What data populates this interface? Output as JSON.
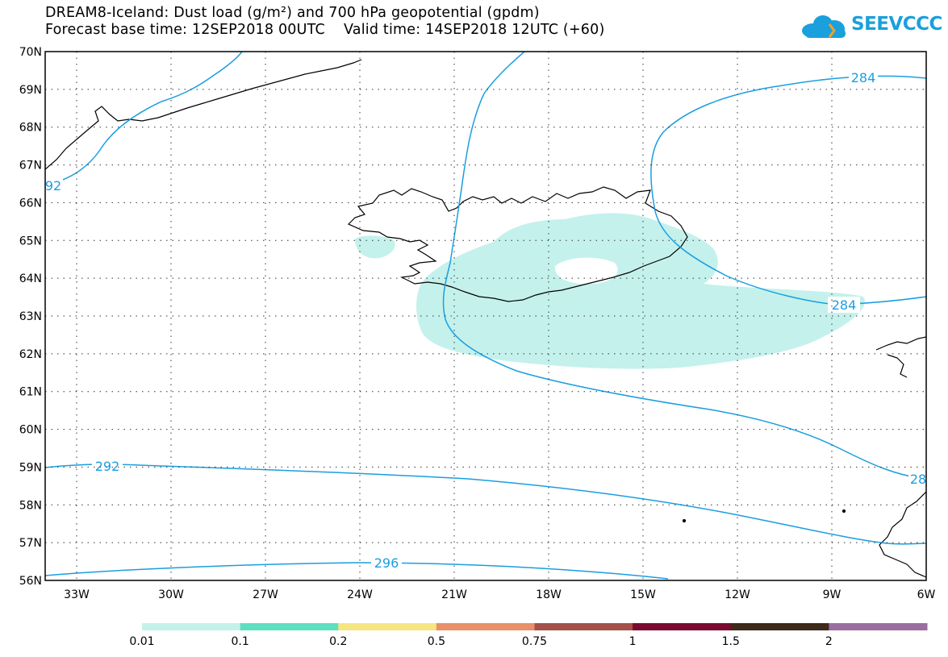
{
  "header": {
    "title_line1": "DREAM8-Iceland: Dust load (g/m²) and 700 hPa geopotential (gpdm)",
    "title_line2": "Forecast base time: 12SEP2018 00UTC    Valid time: 14SEP2018 12UTC (+60)",
    "logo_text": "SEEVCCC"
  },
  "map": {
    "lat_range": [
      56,
      70
    ],
    "lon_range": [
      -34,
      -6
    ],
    "lat_labels": [
      "56N",
      "57N",
      "58N",
      "59N",
      "60N",
      "61N",
      "62N",
      "63N",
      "64N",
      "65N",
      "66N",
      "67N",
      "68N",
      "69N",
      "70N"
    ],
    "lon_labels": [
      "33W",
      "30W",
      "27W",
      "24W",
      "21W",
      "18W",
      "15W",
      "12W",
      "9W",
      "6W"
    ],
    "contour_labels": [
      {
        "text": "284",
        "lon": -14.4,
        "lat": 69.3
      },
      {
        "text": "284",
        "lon": -9.3,
        "lat": 63.3
      },
      {
        "text": "92",
        "lon": -33.8,
        "lat": 66.5
      },
      {
        "text": "28",
        "lon": -6.2,
        "lat": 58.8
      },
      {
        "text": "292",
        "lon": -32.0,
        "lat": 59.1
      },
      {
        "text": "296",
        "lon": -24.7,
        "lat": 56.5
      }
    ],
    "contour_color": "#1a9ee0",
    "dust_color": "#c4f1ec"
  },
  "legend": {
    "bins": [
      {
        "color": "#c4f1ec",
        "label": "0.01"
      },
      {
        "color": "#5ee0c0",
        "label": "0.1"
      },
      {
        "color": "#f5e681",
        "label": "0.2"
      },
      {
        "color": "#e8906a",
        "label": "0.5"
      },
      {
        "color": "#a4514a",
        "label": "0.75"
      },
      {
        "color": "#7a0a30",
        "label": "1"
      },
      {
        "color": "#3e2a1a",
        "label": "1.5"
      },
      {
        "color": "#9a6fa0",
        "label": "2"
      }
    ]
  }
}
